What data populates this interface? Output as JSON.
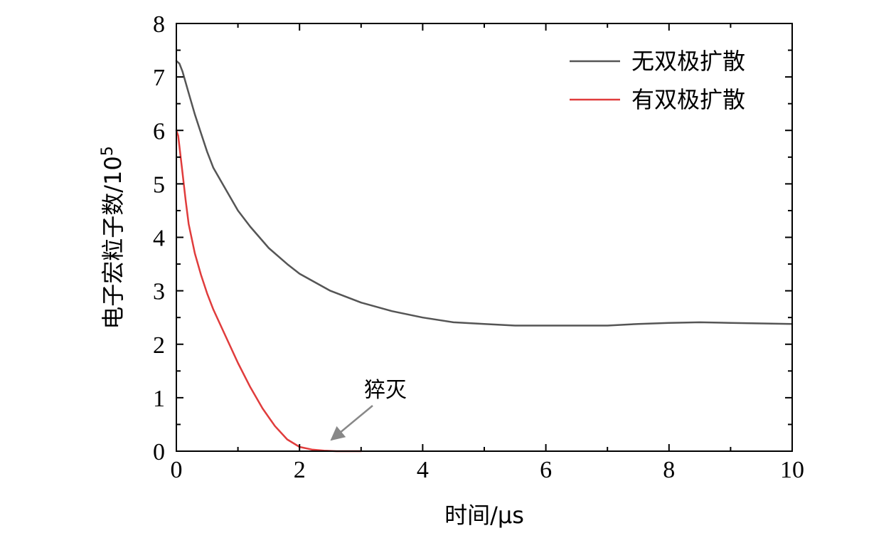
{
  "chart_data": {
    "type": "line",
    "title": "",
    "xlabel": "时间/μs",
    "ylabel_text": "电子宏粒子数/10",
    "ylabel_exp": "5",
    "xlim": [
      0,
      10
    ],
    "ylim": [
      0,
      8
    ],
    "x_ticks": [
      0,
      2,
      4,
      6,
      8,
      10
    ],
    "y_ticks": [
      0,
      1,
      2,
      3,
      4,
      5,
      6,
      7,
      8
    ],
    "grid": false,
    "legend_position": "top-right",
    "series": [
      {
        "name": "无双极扩散",
        "color": "#555555",
        "x": [
          0,
          0.05,
          0.1,
          0.2,
          0.3,
          0.4,
          0.5,
          0.6,
          0.8,
          1.0,
          1.2,
          1.5,
          1.8,
          2.0,
          2.5,
          3.0,
          3.5,
          4.0,
          4.5,
          5.0,
          5.5,
          6.0,
          6.5,
          7.0,
          7.5,
          8.0,
          8.5,
          9.0,
          9.5,
          10.0
        ],
        "y": [
          7.3,
          7.25,
          7.1,
          6.7,
          6.3,
          5.95,
          5.6,
          5.3,
          4.9,
          4.5,
          4.2,
          3.8,
          3.5,
          3.32,
          3.0,
          2.78,
          2.62,
          2.5,
          2.41,
          2.38,
          2.35,
          2.35,
          2.35,
          2.35,
          2.38,
          2.4,
          2.41,
          2.4,
          2.39,
          2.38
        ]
      },
      {
        "name": "有双极扩散",
        "color": "#e03c3c",
        "x": [
          0,
          0.03,
          0.06,
          0.1,
          0.15,
          0.2,
          0.3,
          0.4,
          0.5,
          0.6,
          0.8,
          1.0,
          1.2,
          1.4,
          1.6,
          1.8,
          2.0,
          2.2,
          2.4,
          2.6,
          2.8,
          3.0
        ],
        "y": [
          6.0,
          5.9,
          5.6,
          5.2,
          4.7,
          4.25,
          3.7,
          3.3,
          2.95,
          2.65,
          2.15,
          1.65,
          1.2,
          0.8,
          0.47,
          0.22,
          0.08,
          0.03,
          0.01,
          0.0,
          0.0,
          0.0
        ]
      }
    ],
    "annotations": [
      {
        "text": "猝灭",
        "arrow_x": 2.45,
        "arrow_y": 0.18,
        "text_anchor": "above-right of arrow"
      }
    ]
  }
}
